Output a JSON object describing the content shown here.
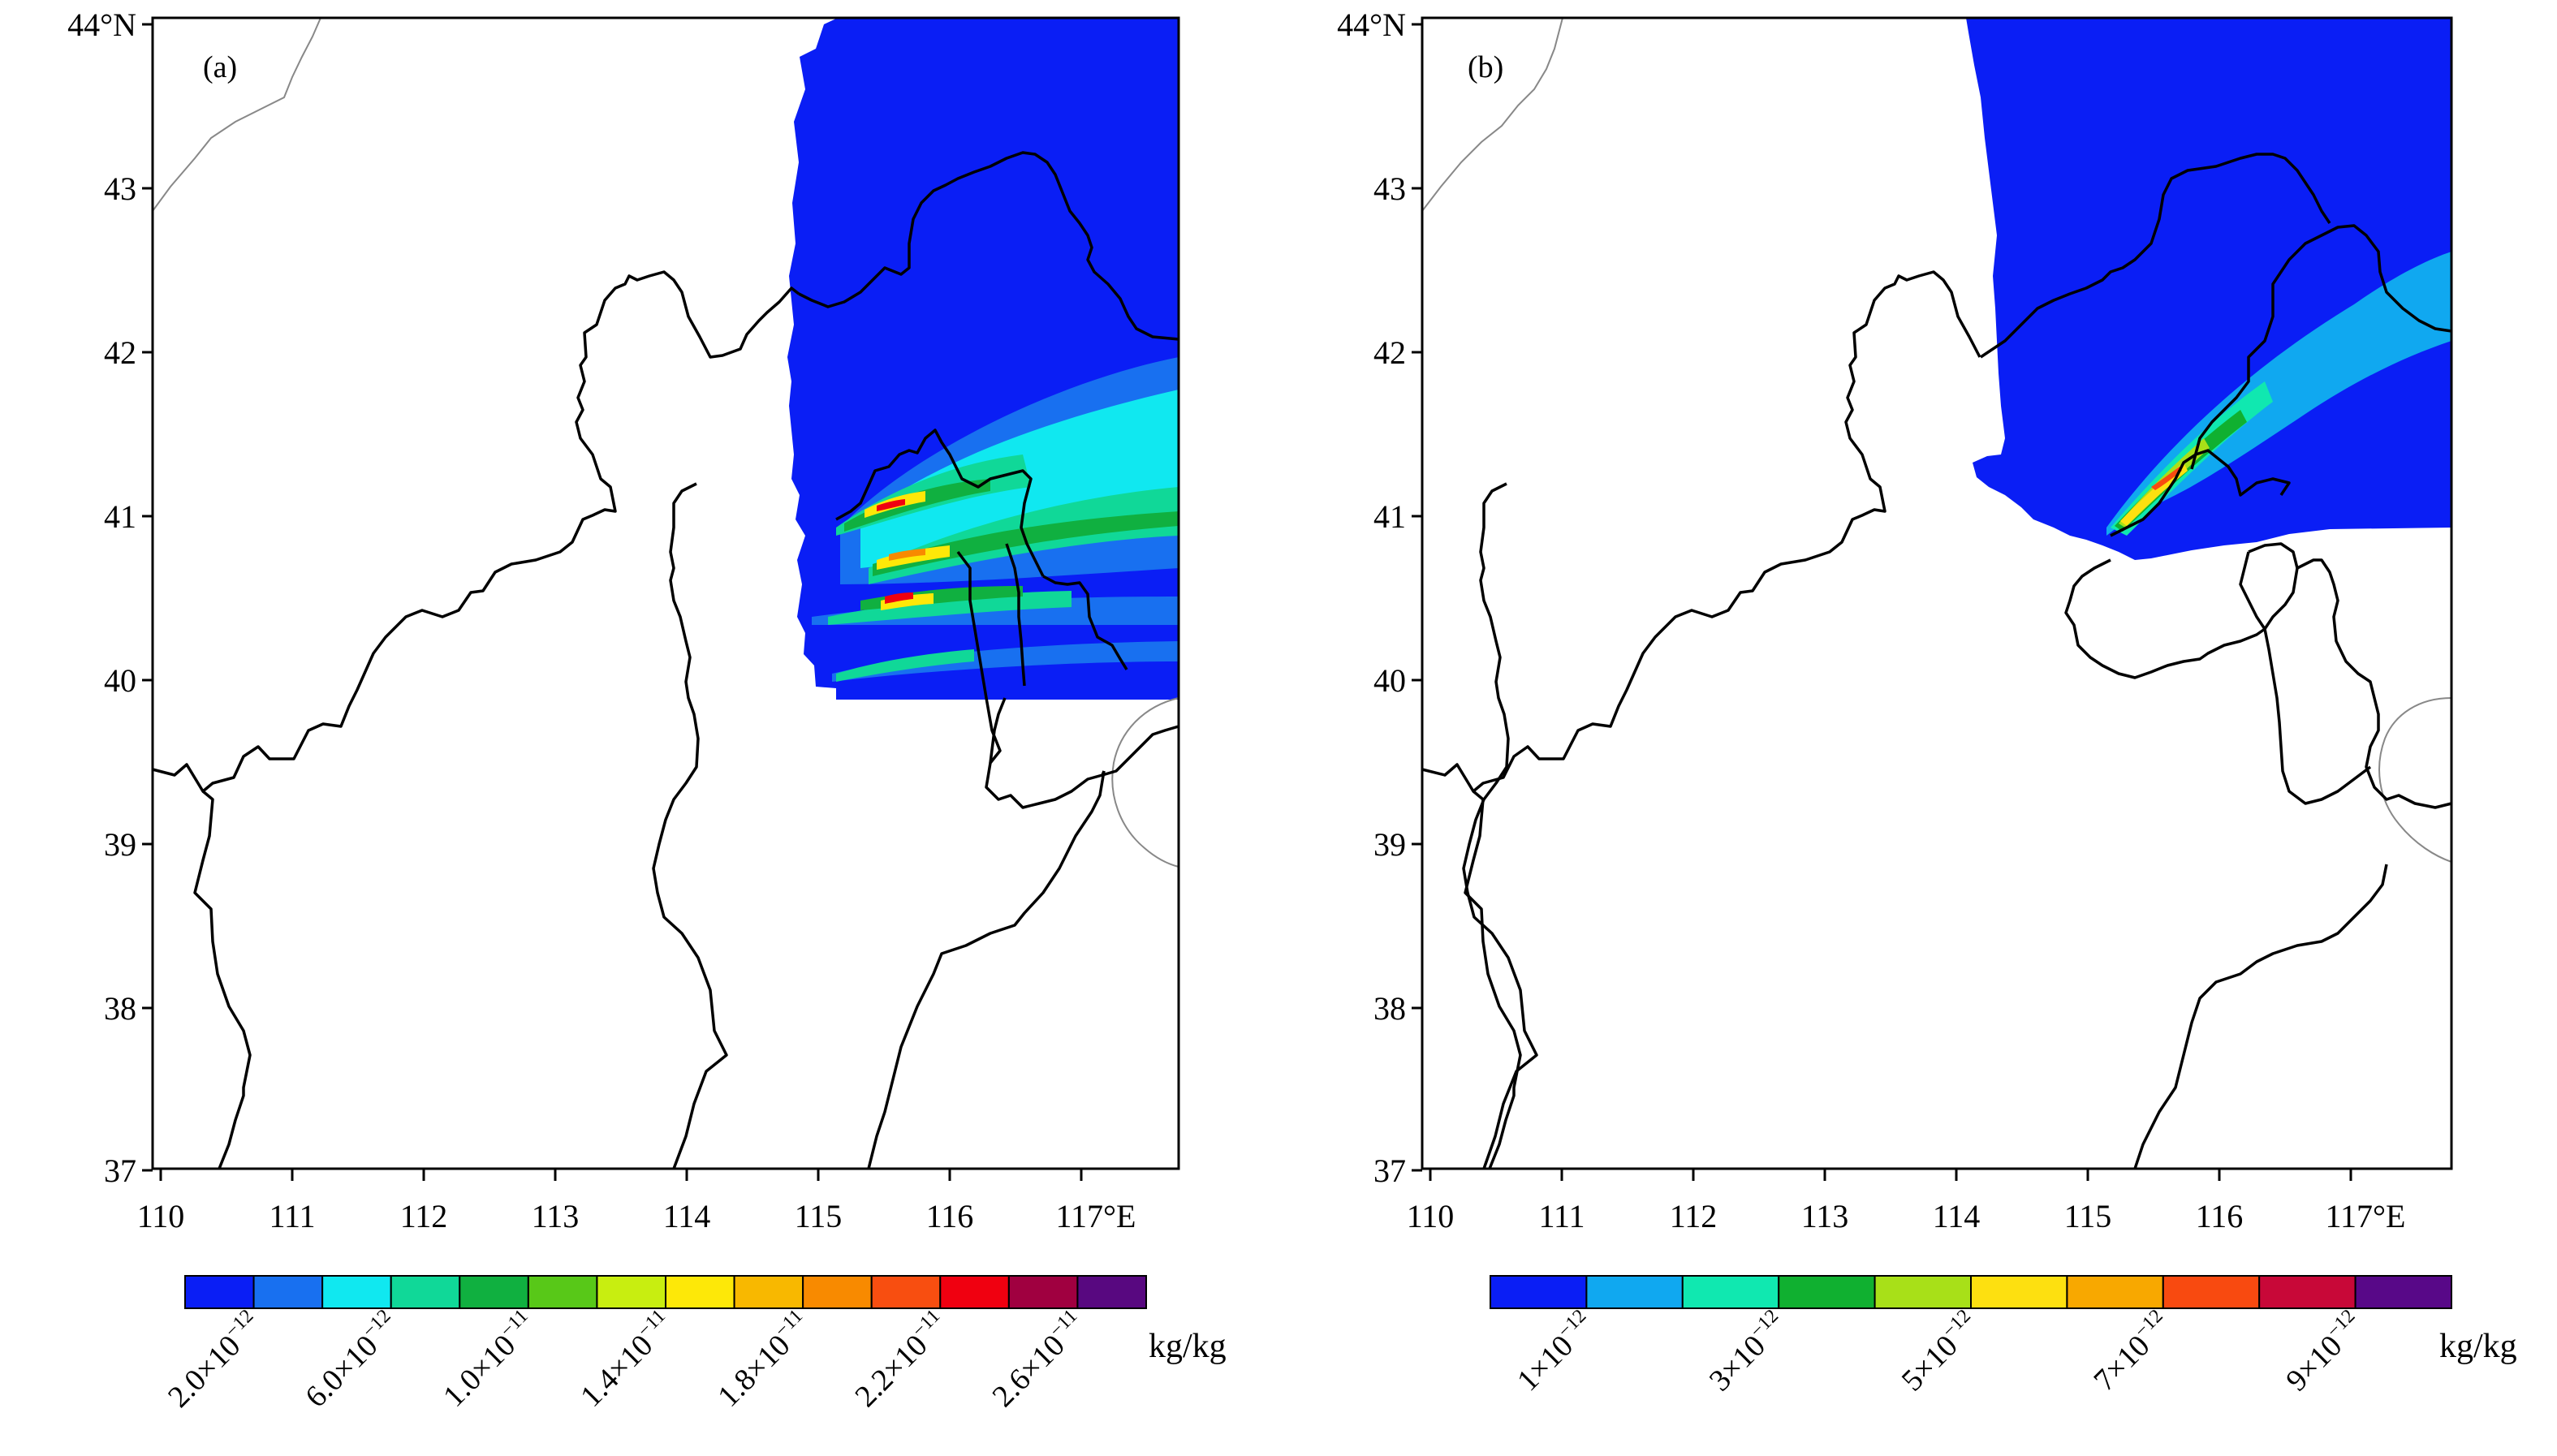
{
  "panels": [
    {
      "label": "(a)",
      "lat_ticks": [
        "44°N",
        "43",
        "42",
        "41",
        "40",
        "39",
        "38",
        "37"
      ],
      "lon_ticks": [
        "110",
        "111",
        "112",
        "113",
        "114",
        "115",
        "116",
        "117°E"
      ],
      "unit": "kg/kg",
      "colorbar": {
        "colors": [
          "#0a1ef5",
          "#1870f0",
          "#10e8f0",
          "#10d898",
          "#10b040",
          "#58c818",
          "#c8ee10",
          "#fde808",
          "#f8b800",
          "#f88a00",
          "#f84e10",
          "#f00010",
          "#a00040",
          "#580880"
        ],
        "labels": [
          {
            "base": "2.0×10",
            "exp": "−12"
          },
          {
            "base": "6.0×10",
            "exp": "−12"
          },
          {
            "base": "1.0×10",
            "exp": "−11"
          },
          {
            "base": "1.4×10",
            "exp": "−11"
          },
          {
            "base": "1.8×10",
            "exp": "−11"
          },
          {
            "base": "2.2×10",
            "exp": "−11"
          },
          {
            "base": "2.6×10",
            "exp": "−11"
          }
        ]
      }
    },
    {
      "label": "(b)",
      "lat_ticks": [
        "44°N",
        "43",
        "42",
        "41",
        "40",
        "39",
        "38",
        "37"
      ],
      "lon_ticks": [
        "110",
        "111",
        "112",
        "113",
        "114",
        "115",
        "116",
        "117°E"
      ],
      "unit": "kg/kg",
      "colorbar": {
        "colors": [
          "#0a1ef5",
          "#10a8f0",
          "#10e8b0",
          "#10b030",
          "#a8e018",
          "#fde010",
          "#f8a800",
          "#f84a10",
          "#c80838",
          "#580888"
        ],
        "labels": [
          {
            "base": "1×10",
            "exp": "−12"
          },
          {
            "base": "3×10",
            "exp": "−12"
          },
          {
            "base": "5×10",
            "exp": "−12"
          },
          {
            "base": "7×10",
            "exp": "−12"
          },
          {
            "base": "9×10",
            "exp": "−12"
          }
        ]
      }
    }
  ]
}
